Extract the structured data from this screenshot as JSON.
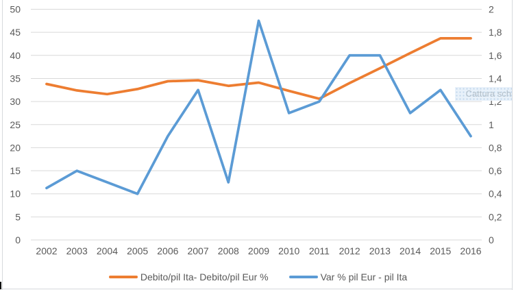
{
  "window": {
    "screenshot_overlay": {
      "text": "Cattura sch"
    }
  },
  "colors": {
    "gridline": "#d9d9d9",
    "axis_text": "#595959",
    "window_border": "#d6d9dc",
    "background": "#ffffff",
    "overlay_bg": "#e8f1fa",
    "overlay_text": "#b3bfc9"
  },
  "chart_data": {
    "type": "line",
    "title": "",
    "grid": true,
    "legend_position": "bottom",
    "categories": [
      "2002",
      "2003",
      "2004",
      "2005",
      "2006",
      "2007",
      "2008",
      "2009",
      "2010",
      "2011",
      "2012",
      "2013",
      "2014",
      "2015",
      "2016"
    ],
    "series": [
      {
        "name": "Debito/pil Ita- Debito/pil Eur %",
        "axis": "left",
        "color": "#ED7D31",
        "values": [
          33.8,
          32.4,
          31.6,
          32.7,
          34.4,
          34.6,
          33.4,
          34.1,
          32.3,
          30.6,
          34.0,
          37.2,
          40.5,
          43.7,
          43.7
        ]
      },
      {
        "name": "Var % pil Eur - pil Ita",
        "axis": "right",
        "color": "#5B9BD5",
        "values": [
          0.45,
          0.6,
          0.5,
          0.4,
          0.9,
          1.3,
          0.5,
          1.9,
          1.1,
          1.2,
          1.6,
          1.6,
          1.1,
          1.3,
          0.9
        ]
      }
    ],
    "left_axis": {
      "min": 0,
      "max": 50,
      "step": 5,
      "tick_labels": [
        "0",
        "5",
        "10",
        "15",
        "20",
        "25",
        "30",
        "35",
        "40",
        "45",
        "50"
      ]
    },
    "right_axis": {
      "min": 0,
      "max": 2,
      "step": 0.2,
      "tick_labels": [
        "0",
        "0,2",
        "0,4",
        "0,6",
        "0,8",
        "1",
        "1,2",
        "1,4",
        "1,6",
        "1,8",
        "2"
      ]
    }
  }
}
